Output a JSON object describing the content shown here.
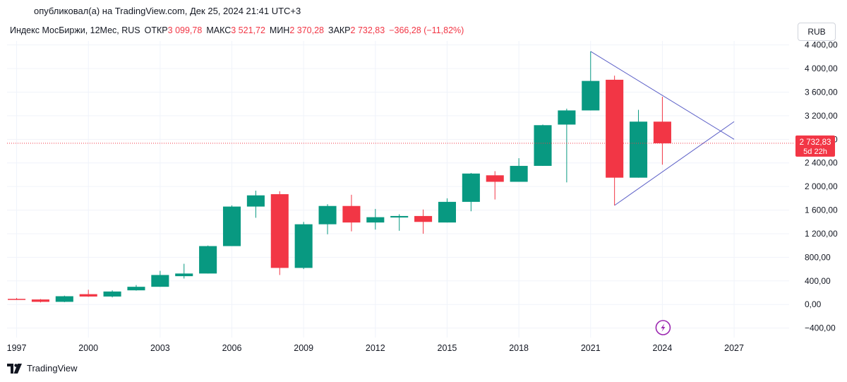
{
  "header": {
    "published": "опубликовал(а) на TradingView.com, Дек 25, 2024 21:41 UTC+3"
  },
  "legend": {
    "symbol": "Индекс МосБиржи, 12Мес, RUS",
    "open_label": "ОТКР",
    "open": "3 099,78",
    "high_label": "МАКС",
    "high": "3 521,72",
    "low_label": "МИН",
    "low": "2 370,28",
    "close_label": "ЗАКР",
    "close": "2 732,83",
    "change": "−366,28 (−11,82%)"
  },
  "currency": "RUB",
  "price_tag": {
    "value": "2 732,83",
    "countdown": "5d 22h"
  },
  "footer": {
    "brand": "TradingView"
  },
  "colors": {
    "up": "#089981",
    "down": "#f23645",
    "trendline": "#5b5fc7",
    "grid": "#f0f3fa",
    "text": "#131722",
    "flash": "#9c27b0"
  },
  "chart_data": {
    "type": "candlestick",
    "title": "Индекс МосБиржи, 12Мес",
    "ylim": [
      -560,
      4420
    ],
    "yticks": [
      -400,
      0,
      400,
      800,
      1200,
      1600,
      2000,
      2400,
      3200,
      3600,
      4000
    ],
    "ytick_labels": [
      "−400,00",
      "0,00",
      "400,00",
      "800,00",
      "1 200,00",
      "1 600,00",
      "2 000,00",
      "2 400,00",
      "3 200,00",
      "3 600,00",
      "4 000,00"
    ],
    "ytick_partial_top": "4 400,00",
    "ytick_partial_hidden": "2 800,00",
    "xlim": [
      1996.6,
      2029.3
    ],
    "xticks": [
      1997,
      2000,
      2003,
      2006,
      2009,
      2012,
      2015,
      2018,
      2021,
      2024,
      2027
    ],
    "candles": [
      {
        "year": 1997,
        "open": 95,
        "high": 110,
        "low": 82,
        "close": 82
      },
      {
        "year": 1998,
        "open": 85,
        "high": 92,
        "low": 35,
        "close": 45
      },
      {
        "year": 1999,
        "open": 45,
        "high": 150,
        "low": 40,
        "close": 140
      },
      {
        "year": 2000,
        "open": 175,
        "high": 250,
        "low": 130,
        "close": 135
      },
      {
        "year": 2001,
        "open": 135,
        "high": 240,
        "low": 120,
        "close": 220
      },
      {
        "year": 2002,
        "open": 240,
        "high": 330,
        "low": 235,
        "close": 300
      },
      {
        "year": 2003,
        "open": 300,
        "high": 570,
        "low": 300,
        "close": 500
      },
      {
        "year": 2004,
        "open": 480,
        "high": 690,
        "low": 440,
        "close": 525
      },
      {
        "year": 2005,
        "open": 525,
        "high": 1000,
        "low": 525,
        "close": 990
      },
      {
        "year": 2006,
        "open": 990,
        "high": 1680,
        "low": 990,
        "close": 1660
      },
      {
        "year": 2007,
        "open": 1660,
        "high": 1930,
        "low": 1470,
        "close": 1850
      },
      {
        "year": 2008,
        "open": 1870,
        "high": 1920,
        "low": 500,
        "close": 620
      },
      {
        "year": 2009,
        "open": 620,
        "high": 1400,
        "low": 600,
        "close": 1360
      },
      {
        "year": 2010,
        "open": 1360,
        "high": 1700,
        "low": 1190,
        "close": 1670
      },
      {
        "year": 2011,
        "open": 1670,
        "high": 1860,
        "low": 1240,
        "close": 1390
      },
      {
        "year": 2012,
        "open": 1390,
        "high": 1620,
        "low": 1270,
        "close": 1480
      },
      {
        "year": 2013,
        "open": 1475,
        "high": 1530,
        "low": 1250,
        "close": 1500
      },
      {
        "year": 2014,
        "open": 1500,
        "high": 1610,
        "low": 1200,
        "close": 1400
      },
      {
        "year": 2015,
        "open": 1390,
        "high": 1800,
        "low": 1390,
        "close": 1740
      },
      {
        "year": 2016,
        "open": 1740,
        "high": 2230,
        "low": 1580,
        "close": 2220
      },
      {
        "year": 2017,
        "open": 2190,
        "high": 2260,
        "low": 1780,
        "close": 2080
      },
      {
        "year": 2018,
        "open": 2080,
        "high": 2480,
        "low": 2080,
        "close": 2350
      },
      {
        "year": 2019,
        "open": 2350,
        "high": 3050,
        "low": 2350,
        "close": 3040
      },
      {
        "year": 2020,
        "open": 3050,
        "high": 3320,
        "low": 2070,
        "close": 3290
      },
      {
        "year": 2021,
        "open": 3290,
        "high": 4290,
        "low": 3290,
        "close": 3790
      },
      {
        "year": 2022,
        "open": 3810,
        "high": 3880,
        "low": 1680,
        "close": 2150
      },
      {
        "year": 2023,
        "open": 2150,
        "high": 3300,
        "low": 2150,
        "close": 3100
      },
      {
        "year": 2024,
        "open": 3099.78,
        "high": 3521.72,
        "low": 2370.28,
        "close": 2732.83
      }
    ],
    "trendlines": [
      {
        "from": {
          "year": 2021,
          "price": 4290
        },
        "to": {
          "year": 2027,
          "price": 2800
        }
      },
      {
        "from": {
          "year": 2022,
          "price": 1680
        },
        "to": {
          "year": 2027,
          "price": 3100
        }
      }
    ],
    "last_price": 2732.83
  }
}
